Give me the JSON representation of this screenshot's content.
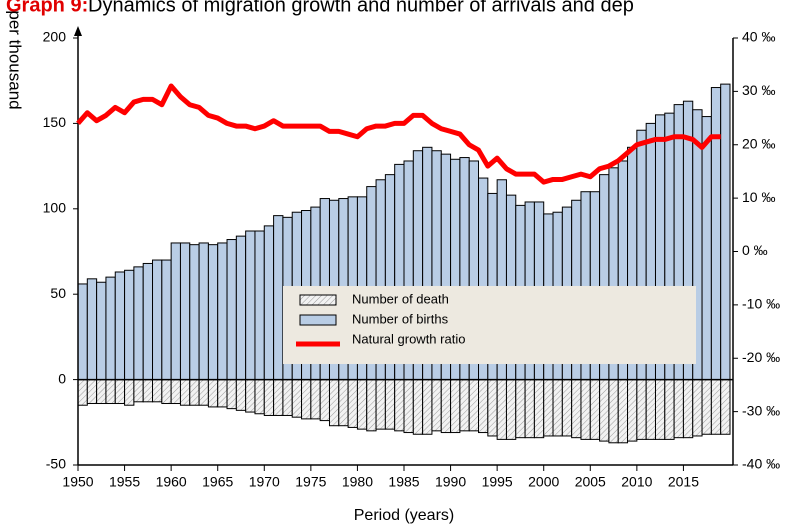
{
  "chart_data": {
    "type": "bar-line",
    "title_label": "Graph 9:",
    "title": "Dynamics of migration growth and number of arrivals and dep",
    "ylabel": "per thousand",
    "xlabel": "Period (years)",
    "x": [
      1950,
      1951,
      1952,
      1953,
      1954,
      1955,
      1956,
      1957,
      1958,
      1959,
      1960,
      1961,
      1962,
      1963,
      1964,
      1965,
      1966,
      1967,
      1968,
      1969,
      1970,
      1971,
      1972,
      1973,
      1974,
      1975,
      1976,
      1977,
      1978,
      1979,
      1980,
      1981,
      1982,
      1983,
      1984,
      1985,
      1986,
      1987,
      1988,
      1989,
      1990,
      1991,
      1992,
      1993,
      1994,
      1995,
      1996,
      1997,
      1998,
      1999,
      2000,
      2001,
      2002,
      2003,
      2004,
      2005,
      2006,
      2007,
      2008,
      2009,
      2010,
      2011,
      2012,
      2013,
      2014,
      2015,
      2016,
      2017,
      2018,
      2019
    ],
    "xlim": [
      1950,
      2020
    ],
    "xticks": [
      1950,
      1955,
      1960,
      1965,
      1970,
      1975,
      1980,
      1985,
      1990,
      1995,
      2000,
      2005,
      2010,
      2015
    ],
    "ylim": [
      -50,
      200
    ],
    "yticks": [
      -50,
      0,
      50,
      100,
      150,
      200
    ],
    "y2lim": [
      -40,
      40
    ],
    "y2ticks": [
      {
        "value": -40,
        "label": "-40 ‰"
      },
      {
        "value": -30,
        "label": "-30 ‰"
      },
      {
        "value": -20,
        "label": "-20 ‰"
      },
      {
        "value": -10,
        "label": "-10 ‰"
      },
      {
        "value": 0,
        "label": "0 ‰"
      },
      {
        "value": 10,
        "label": "10 ‰"
      },
      {
        "value": 20,
        "label": "20 ‰"
      },
      {
        "value": 30,
        "label": "30 ‰"
      },
      {
        "value": 40,
        "label": "40 ‰"
      }
    ],
    "series": [
      {
        "name": "Number of death",
        "type": "bar",
        "color": "#e6e6e6",
        "values": [
          -15,
          -14,
          -14,
          -14,
          -14,
          -15,
          -13,
          -13,
          -13,
          -14,
          -14,
          -15,
          -15,
          -15,
          -16,
          -16,
          -17,
          -18,
          -19,
          -20,
          -21,
          -21,
          -21,
          -22,
          -23,
          -23,
          -24,
          -27,
          -27,
          -28,
          -29,
          -30,
          -29,
          -29,
          -30,
          -31,
          -32,
          -32,
          -30,
          -31,
          -31,
          -30,
          -30,
          -31,
          -33,
          -35,
          -35,
          -34,
          -34,
          -34,
          -33,
          -33,
          -33,
          -34,
          -35,
          -35,
          -36,
          -37,
          -37,
          -36,
          -35,
          -35,
          -35,
          -35,
          -34,
          -34,
          -33,
          -32,
          -32,
          -32
        ]
      },
      {
        "name": "Number of births",
        "type": "bar",
        "color": "#b9cde5",
        "values": [
          56,
          59,
          57,
          60,
          63,
          64,
          66,
          68,
          70,
          70,
          80,
          80,
          79,
          80,
          79,
          80,
          82,
          84,
          87,
          87,
          90,
          96,
          95,
          98,
          99,
          101,
          106,
          105,
          106,
          107,
          107,
          113,
          117,
          120,
          126,
          128,
          134,
          136,
          134,
          132,
          129,
          130,
          128,
          118,
          109,
          117,
          108,
          102,
          104,
          104,
          97,
          98,
          101,
          105,
          110,
          110,
          120,
          124,
          128,
          136,
          146,
          150,
          155,
          156,
          161,
          163,
          158,
          154,
          171,
          173
        ]
      },
      {
        "name": "Natural growth ratio",
        "type": "line",
        "axis": "y2",
        "color": "#ff0000",
        "values": [
          24,
          26,
          24.5,
          25.5,
          27,
          26,
          28,
          28.5,
          28.5,
          27.5,
          31,
          29,
          27.5,
          27,
          25.5,
          25,
          24,
          23.5,
          23.5,
          23,
          23.5,
          24.5,
          23.5,
          23.5,
          23.5,
          23.5,
          23.5,
          22.5,
          22.5,
          22,
          21.5,
          23,
          23.5,
          23.5,
          24,
          24,
          25.5,
          25.5,
          24,
          23,
          22.5,
          22,
          20,
          19,
          16,
          17.5,
          15.5,
          14.5,
          14.5,
          14.5,
          13,
          13.5,
          13.5,
          14,
          14.5,
          14,
          15.5,
          16,
          17,
          18.5,
          20,
          20.5,
          21,
          21,
          21.5,
          21.5,
          21,
          19.5,
          21.5,
          21.5
        ]
      }
    ]
  }
}
